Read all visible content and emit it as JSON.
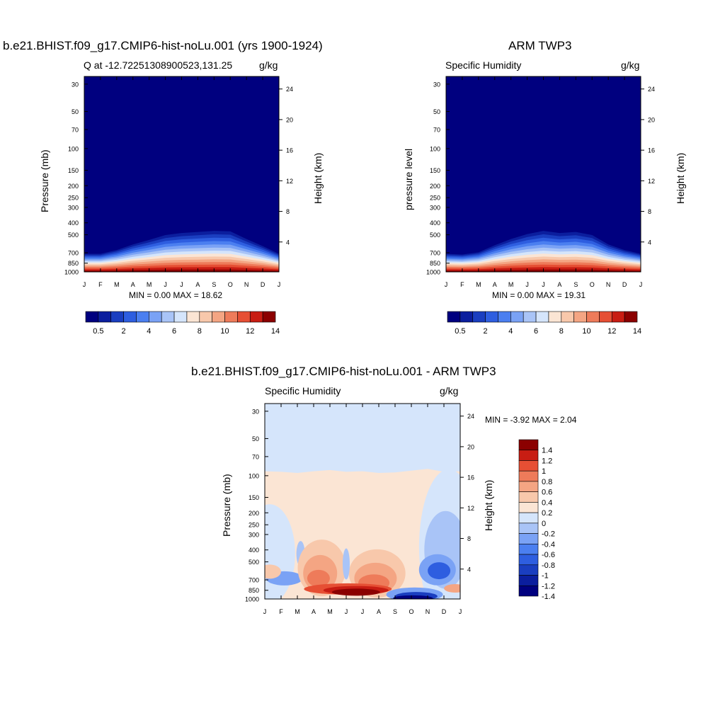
{
  "colors": {
    "seq": [
      "#00007f",
      "#0b1e9e",
      "#1a3ec0",
      "#2e5ee0",
      "#4b7ff0",
      "#7aa2f5",
      "#a9c4f7",
      "#d5e5fb",
      "#fbe5d4",
      "#f8c8ab",
      "#f4a583",
      "#ee7b5a",
      "#e64f34",
      "#c81d13",
      "#8b0000"
    ],
    "div": [
      "#00007f",
      "#0b1e9e",
      "#1a3ec0",
      "#2e5ee0",
      "#4b7ff0",
      "#7aa2f5",
      "#a9c4f7",
      "#d5e5fb",
      "#fbe5d4",
      "#f8c8ab",
      "#f4a583",
      "#ee7b5a",
      "#e64f34",
      "#c81d13",
      "#8b0000"
    ]
  },
  "chart_data": [
    {
      "type": "heatmap",
      "title": "b.e21.BHIST.f09_g17.CMIP6-hist-noLu.001 (yrs 1900-1924)",
      "subtitle_left": "Q at -12.72251308900523,131.25",
      "subtitle_right": "g/kg",
      "ylabel": "Pressure (mb)",
      "y2label": "Height (km)",
      "stats": "MIN =   0.00 MAX =  18.62",
      "x_ticks": [
        "J",
        "F",
        "M",
        "A",
        "M",
        "J",
        "J",
        "A",
        "S",
        "O",
        "N",
        "D",
        "J"
      ],
      "y_ticks": [
        "30",
        "50",
        "70",
        "100",
        "150",
        "200",
        "250",
        "300",
        "400",
        "500",
        "700",
        "850",
        "1000"
      ],
      "y2_ticks": [
        "24",
        "20",
        "16",
        "12",
        "8",
        "4"
      ],
      "colorbar_labels": [
        "0.5",
        "2",
        "4",
        "6",
        "8",
        "10",
        "12",
        "14"
      ],
      "surface_depth_hPa": [
        [
          0,
          700
        ],
        [
          1,
          700
        ],
        [
          2,
          650
        ],
        [
          3,
          580
        ],
        [
          4,
          530
        ],
        [
          5,
          480
        ],
        [
          6,
          460
        ],
        [
          7,
          450
        ],
        [
          8,
          440
        ],
        [
          9,
          445
        ],
        [
          10,
          520
        ],
        [
          11,
          600
        ],
        [
          12,
          700
        ]
      ],
      "min": 0.0,
      "max": 18.62
    },
    {
      "type": "heatmap",
      "title": "ARM TWP3",
      "subtitle_left": "Specific Humidity",
      "subtitle_right": "g/kg",
      "ylabel": "pressure level",
      "y2label": "Height (km)",
      "stats": "MIN =   0.00 MAX =  19.31",
      "x_ticks": [
        "J",
        "F",
        "M",
        "A",
        "M",
        "J",
        "J",
        "A",
        "S",
        "O",
        "N",
        "D",
        "J"
      ],
      "y_ticks": [
        "30",
        "50",
        "70",
        "100",
        "150",
        "200",
        "250",
        "300",
        "400",
        "500",
        "700",
        "850",
        "1000"
      ],
      "y2_ticks": [
        "24",
        "20",
        "16",
        "12",
        "8",
        "4"
      ],
      "colorbar_labels": [
        "0.5",
        "2",
        "4",
        "6",
        "8",
        "10",
        "12",
        "14"
      ],
      "surface_depth_hPa": [
        [
          0,
          700
        ],
        [
          1,
          710
        ],
        [
          2,
          680
        ],
        [
          3,
          590
        ],
        [
          4,
          520
        ],
        [
          5,
          470
        ],
        [
          6,
          440
        ],
        [
          7,
          460
        ],
        [
          8,
          450
        ],
        [
          9,
          480
        ],
        [
          10,
          580
        ],
        [
          11,
          650
        ],
        [
          12,
          700
        ]
      ],
      "min": 0.0,
      "max": 19.31
    },
    {
      "type": "heatmap",
      "title": "b.e21.BHIST.f09_g17.CMIP6-hist-noLu.001 - ARM TWP3",
      "subtitle_left": "Specific Humidity",
      "subtitle_right": "g/kg",
      "ylabel": "Pressure (mb)",
      "y2label": "Height (km)",
      "stats": "MIN =  -3.92 MAX =   2.04",
      "x_ticks": [
        "J",
        "F",
        "M",
        "A",
        "M",
        "J",
        "J",
        "A",
        "S",
        "O",
        "N",
        "D",
        "J"
      ],
      "y_ticks": [
        "30",
        "50",
        "70",
        "100",
        "150",
        "200",
        "250",
        "300",
        "400",
        "500",
        "700",
        "850",
        "1000"
      ],
      "y2_ticks": [
        "24",
        "20",
        "16",
        "12",
        "8",
        "4"
      ],
      "colorbar_labels": [
        "1.4",
        "1.2",
        "1",
        "0.8",
        "0.6",
        "0.4",
        "0.2",
        "0",
        "-0.2",
        "-0.4",
        "-0.6",
        "-0.8",
        "-1",
        "-1.2",
        "-1.4"
      ],
      "min": -3.92,
      "max": 2.04
    }
  ]
}
